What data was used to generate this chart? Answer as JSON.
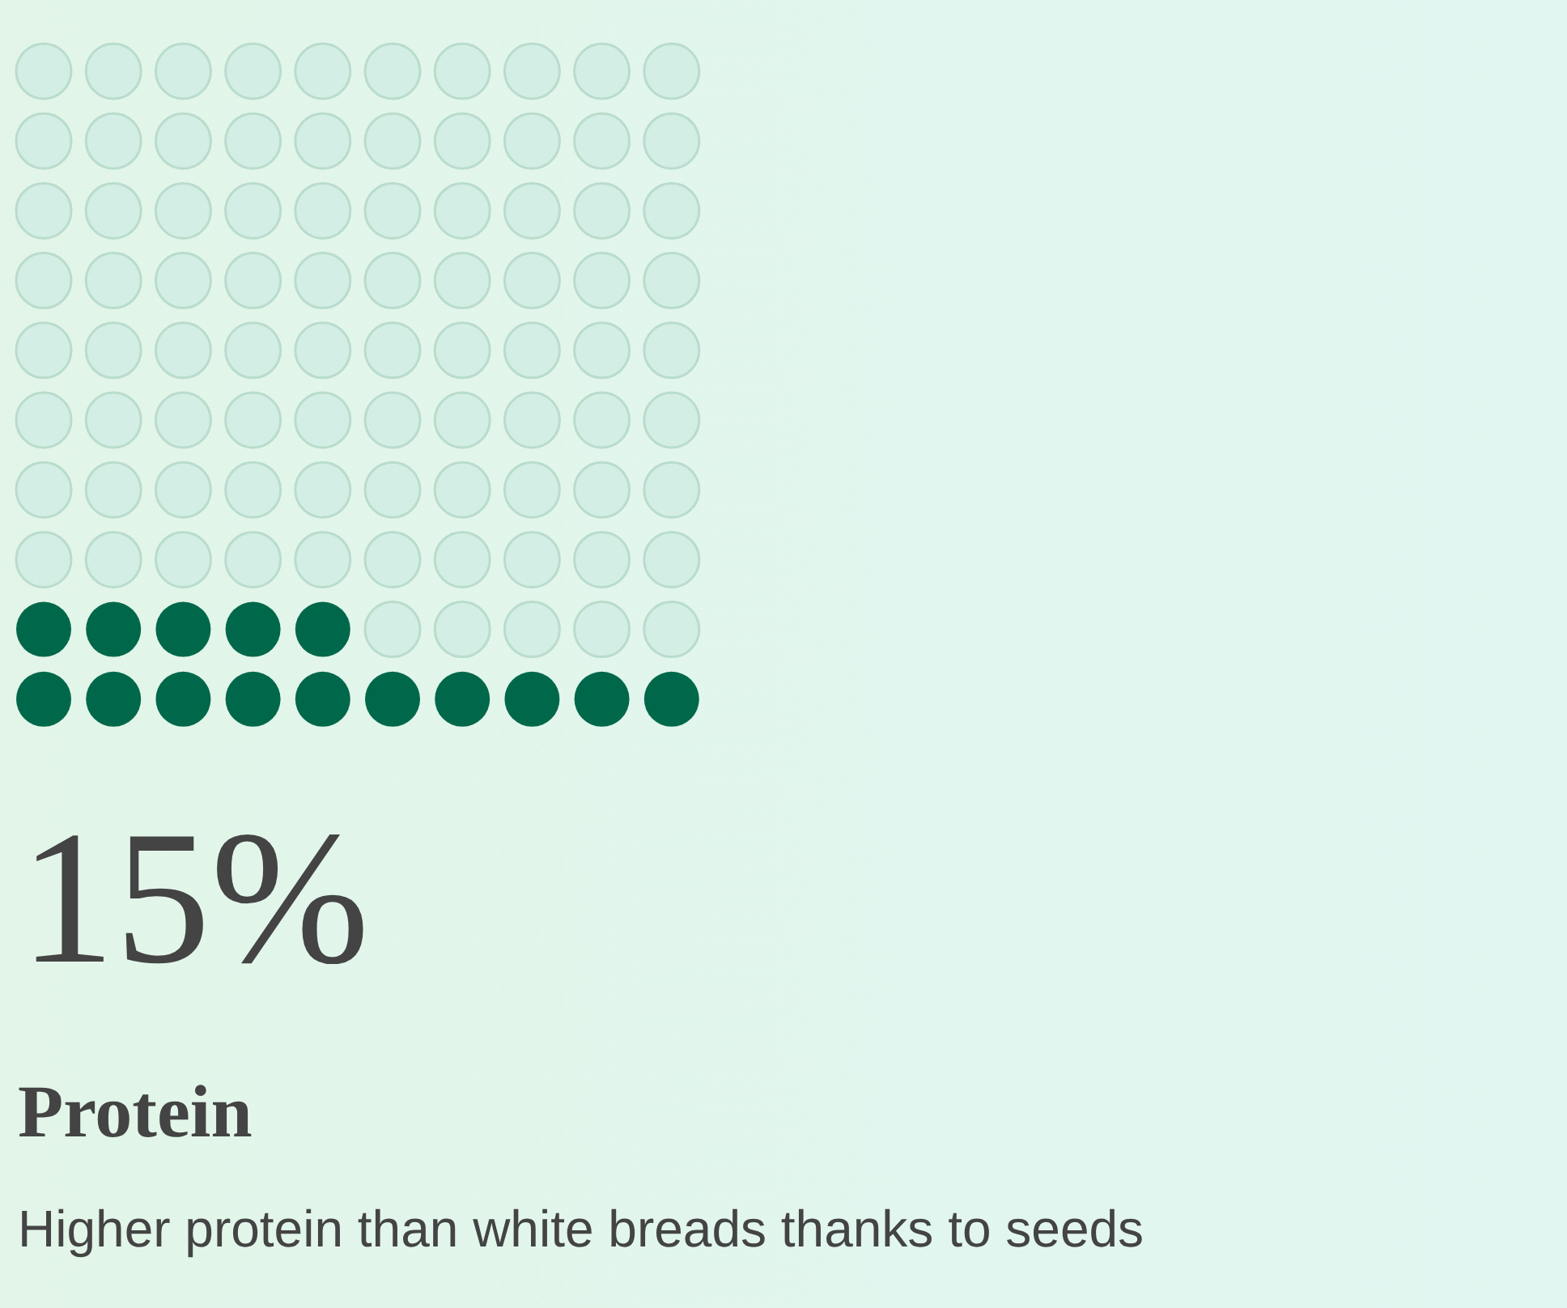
{
  "chart_data": {
    "type": "other",
    "categories": [
      "Protein"
    ],
    "values": [
      15
    ],
    "value_labels": [
      "15%"
    ],
    "color": "#00684a",
    "annotations": [
      "Higher protein than white breads thanks to seeds"
    ]
  }
}
